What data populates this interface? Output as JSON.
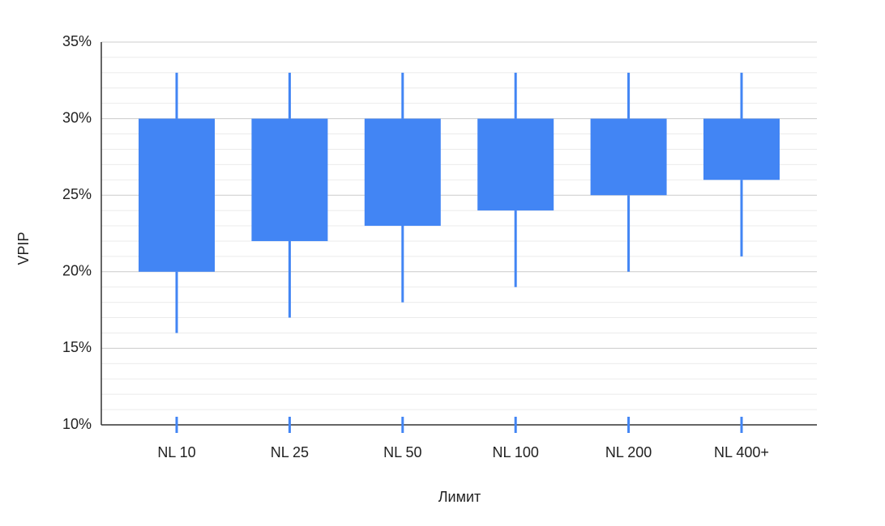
{
  "chart_data": {
    "type": "candlestick",
    "y_label": "VPIP",
    "x_label": "Лимит",
    "categories": [
      "NL 10",
      "NL 25",
      "NL 50",
      "NL 100",
      "NL 200",
      "NL 400+"
    ],
    "low": [
      16,
      17,
      18,
      19,
      20,
      21
    ],
    "open": [
      20,
      22,
      23,
      24,
      25,
      26
    ],
    "close": [
      30,
      30,
      30,
      30,
      30,
      30
    ],
    "high": [
      33,
      33,
      33,
      33,
      33,
      33
    ],
    "color": "#4285f4",
    "ylim": [
      10,
      35
    ],
    "yticks": [
      {
        "value": 10,
        "label": "10%"
      },
      {
        "value": 15,
        "label": "15%"
      },
      {
        "value": 20,
        "label": "20%"
      },
      {
        "value": 25,
        "label": "25%"
      },
      {
        "value": 30,
        "label": "30%"
      },
      {
        "value": 35,
        "label": "35%"
      }
    ],
    "minor_yticks": [
      11,
      12,
      13,
      14,
      16,
      17,
      18,
      19,
      21,
      22,
      23,
      24,
      26,
      27,
      28,
      29,
      31,
      32,
      33,
      34
    ],
    "grid": true
  }
}
